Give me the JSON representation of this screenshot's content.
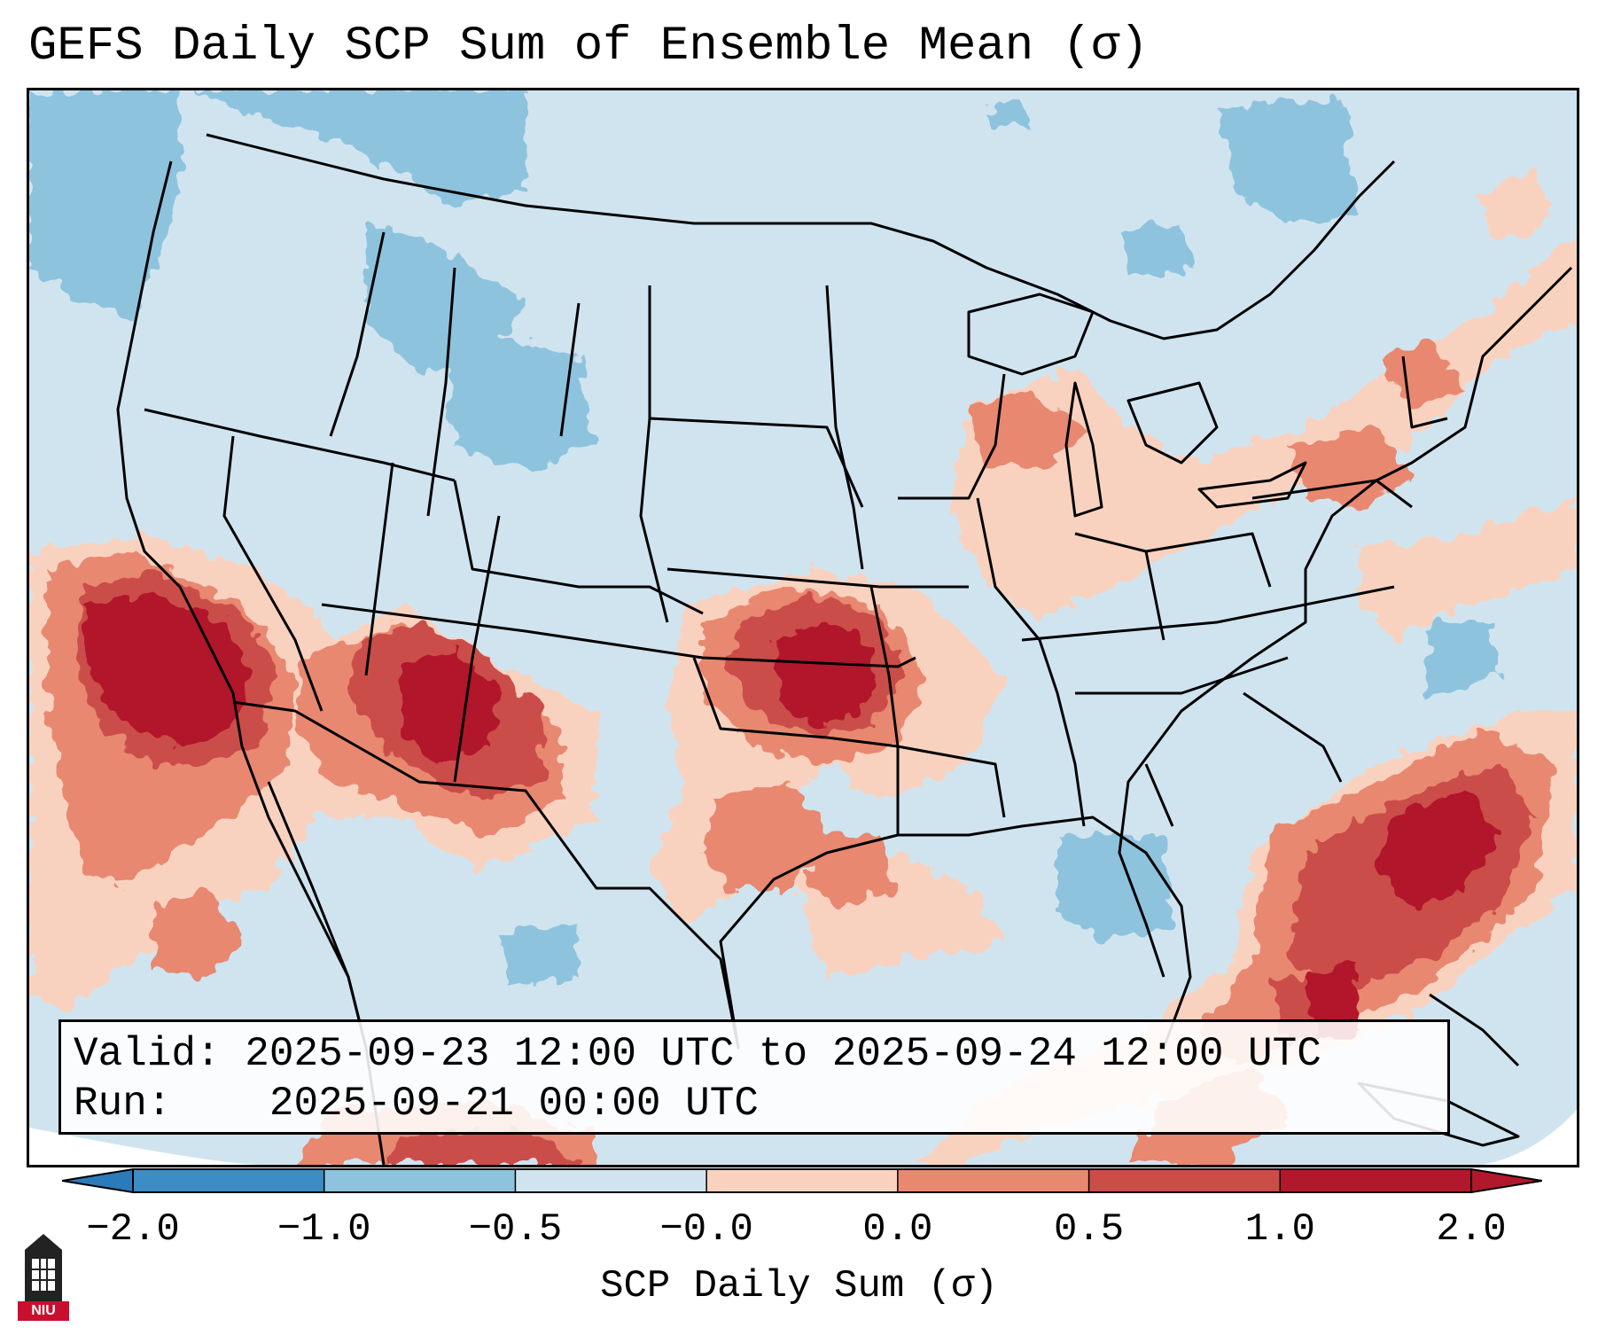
{
  "title": "GEFS Daily SCP Sum of Ensemble Mean (σ)",
  "info": {
    "valid_label": "Valid:",
    "valid_value": "2025-09-23 12:00 UTC to 2025-09-24 12:00 UTC",
    "run_label": "Run:",
    "run_value": "2025-09-21 00:00 UTC"
  },
  "colorbar": {
    "label": "SCP Daily Sum (σ)",
    "ticks": [
      "−2.0",
      "−1.0",
      "−0.5",
      "−0.0",
      "0.0",
      "0.5",
      "1.0",
      "2.0"
    ],
    "colors": {
      "below_min": "#2b7bba",
      "bins": [
        "#3c8dc4",
        "#8ec3de",
        "#d0e4ef",
        "#f7f7f7",
        "#f9d2bf",
        "#e8886f",
        "#cb4d48",
        "#b2182b"
      ],
      "above_max": "#b2182b"
    }
  },
  "logo_text": "NIU"
}
